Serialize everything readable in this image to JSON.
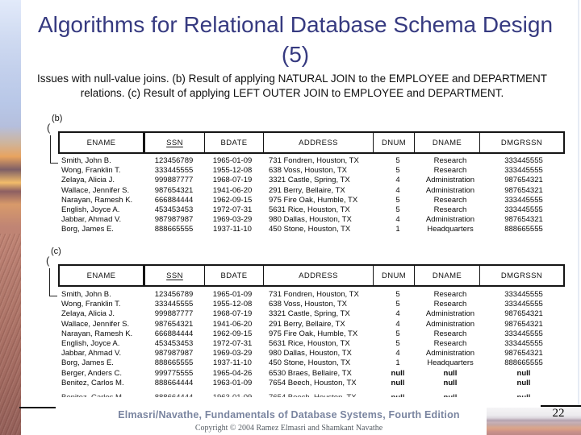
{
  "colors": {
    "title": "#363a80",
    "footer": "#7a85a0"
  },
  "slide": {
    "title": "Algorithms for Relational Database Schema Design (5)",
    "subtitle": "Issues with null-value joins. (b) Result of applying NATURAL JOIN to the EMPLOYEE and DEPARTMENT relations. (c) Result of applying LEFT OUTER JOIN to EMPLOYEE and DEPARTMENT.",
    "page_number": "22",
    "footer_book": "Elmasri/Navathe, Fundamentals of Database Systems, Fourth Edition",
    "footer_copyright": "Copyright © 2004 Ramez Elmasri and Shamkant Navathe"
  },
  "figure_b": {
    "label": "(b)",
    "brace": "(",
    "columns": [
      "ENAME",
      "SSN",
      "BDATE",
      "ADDRESS",
      "DNUM",
      "DNAME",
      "DMGRSSN"
    ],
    "underlined_columns": [
      "SSN"
    ],
    "rows": [
      [
        "Smith, John B.",
        "123456789",
        "1965-01-09",
        "731 Fondren, Houston, TX",
        "5",
        "Research",
        "333445555"
      ],
      [
        "Wong, Franklin T.",
        "333445555",
        "1955-12-08",
        "638 Voss, Houston, TX",
        "5",
        "Research",
        "333445555"
      ],
      [
        "Zelaya, Alicia J.",
        "999887777",
        "1968-07-19",
        "3321 Castle, Spring, TX",
        "4",
        "Administration",
        "987654321"
      ],
      [
        "Wallace, Jennifer S.",
        "987654321",
        "1941-06-20",
        "291 Berry, Bellaire, TX",
        "4",
        "Administration",
        "987654321"
      ],
      [
        "Narayan, Ramesh K.",
        "666884444",
        "1962-09-15",
        "975 Fire Oak, Humble, TX",
        "5",
        "Research",
        "333445555"
      ],
      [
        "English, Joyce A.",
        "453453453",
        "1972-07-31",
        "5631 Rice, Houston, TX",
        "5",
        "Research",
        "333445555"
      ],
      [
        "Jabbar, Ahmad V.",
        "987987987",
        "1969-03-29",
        "980 Dallas, Houston, TX",
        "4",
        "Administration",
        "987654321"
      ],
      [
        "Borg, James E.",
        "888665555",
        "1937-11-10",
        "450 Stone, Houston, TX",
        "1",
        "Headquarters",
        "888665555"
      ]
    ]
  },
  "figure_c": {
    "label": "(c)",
    "brace": "(",
    "columns": [
      "ENAME",
      "SSN",
      "BDATE",
      "ADDRESS",
      "DNUM",
      "DNAME",
      "DMGRSSN"
    ],
    "underlined_columns": [
      "SSN"
    ],
    "rows": [
      [
        "Smith, John B.",
        "123456789",
        "1965-01-09",
        "731 Fondren, Houston, TX",
        "5",
        "Research",
        "333445555"
      ],
      [
        "Wong, Franklin T.",
        "333445555",
        "1955-12-08",
        "638 Voss, Houston, TX",
        "5",
        "Research",
        "333445555"
      ],
      [
        "Zelaya, Alicia J.",
        "999887777",
        "1968-07-19",
        "3321 Castle, Spring, TX",
        "4",
        "Administration",
        "987654321"
      ],
      [
        "Wallace, Jennifer S.",
        "987654321",
        "1941-06-20",
        "291 Berry, Bellaire, TX",
        "4",
        "Administration",
        "987654321"
      ],
      [
        "Narayan, Ramesh K.",
        "666884444",
        "1962-09-15",
        "975 Fire Oak, Humble, TX",
        "5",
        "Research",
        "333445555"
      ],
      [
        "English, Joyce A.",
        "453453453",
        "1972-07-31",
        "5631 Rice, Houston, TX",
        "5",
        "Research",
        "333445555"
      ],
      [
        "Jabbar, Ahmad V.",
        "987987987",
        "1969-03-29",
        "980 Dallas, Houston, TX",
        "4",
        "Administration",
        "987654321"
      ],
      [
        "Borg, James E.",
        "888665555",
        "1937-11-10",
        "450 Stone, Houston, TX",
        "1",
        "Headquarters",
        "888665555"
      ],
      [
        "Berger, Anders C.",
        "999775555",
        "1965-04-26",
        "6530 Braes, Bellaire, TX",
        "null",
        "null",
        "null"
      ],
      [
        "Benitez, Carlos M.",
        "888664444",
        "1963-01-09",
        "7654 Beech, Houston, TX",
        "null",
        "null",
        "null"
      ]
    ]
  }
}
